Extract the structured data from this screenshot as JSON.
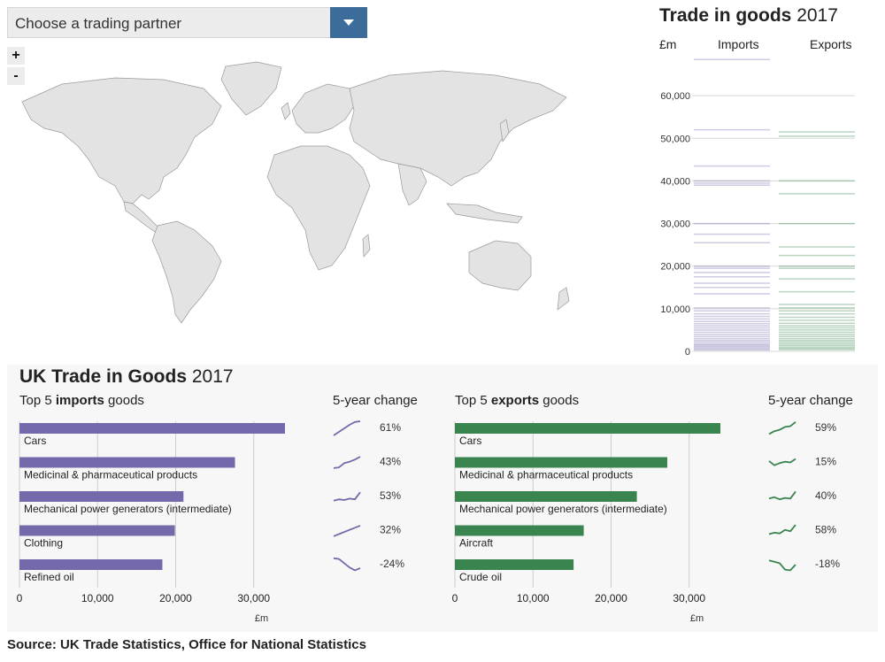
{
  "selector": {
    "label": "Choose a trading partner"
  },
  "map_controls": {
    "zoom_in": "+",
    "zoom_out": "-"
  },
  "trade_panel": {
    "title_bold": "Trade in goods",
    "title_year": "2017",
    "unit_label": "£m",
    "imports_label": "Imports",
    "exports_label": "Exports"
  },
  "summary": {
    "title_bold": "UK Trade in Goods",
    "title_year": "2017",
    "imports_heading": {
      "pre": "Top 5 ",
      "bold": "imports",
      "post": " goods"
    },
    "exports_heading": {
      "pre": "Top 5 ",
      "bold": "exports",
      "post": " goods"
    },
    "change_heading": "5-year change"
  },
  "source": "Source: UK Trade Statistics, Office for National Statistics",
  "colors": {
    "imports": "#7469ab",
    "exports": "#3a8450",
    "selector_button": "#3c6c9a",
    "map_fill": "#e3e3e3",
    "panel_bg": "#f7f7f7"
  },
  "icons": {
    "dropdown": "chevron-down-icon",
    "zoom_in": "plus-icon",
    "zoom_out": "minus-icon"
  },
  "chart_data": [
    {
      "type": "strip",
      "title": "Trade in goods 2017",
      "ylabel": "£m",
      "yticks": [
        "0",
        "10,000",
        "20,000",
        "30,000",
        "40,000",
        "50,000",
        "60,000"
      ],
      "ylim": [
        0,
        70000
      ],
      "series": [
        {
          "name": "Imports",
          "values": [
            68500,
            52000,
            43500,
            40000,
            39500,
            39000,
            30000,
            27500,
            25500,
            20000,
            19500,
            18500,
            17500,
            16000,
            15000,
            13500,
            10200,
            9500,
            8800,
            8200,
            7600,
            7000,
            6500,
            6000,
            5500,
            5000,
            4500,
            4000,
            3500,
            3000,
            2600,
            2200,
            1800,
            1500,
            1200,
            900,
            600,
            300
          ]
        },
        {
          "name": "Exports",
          "values": [
            51500,
            50500,
            40000,
            37000,
            30000,
            24500,
            22500,
            20000,
            19500,
            17000,
            14000,
            11000,
            10200,
            9500,
            8800,
            8000,
            7300,
            6600,
            6000,
            5500,
            5000,
            4500,
            4000,
            3500,
            3000,
            2600,
            2200,
            1800,
            1400,
            1000,
            700,
            400
          ]
        }
      ]
    },
    {
      "type": "bar",
      "orientation": "horizontal",
      "title": "Top 5 imports goods",
      "xlabel": "£m",
      "xticks": [
        "0",
        "10,000",
        "20,000",
        "30,000"
      ],
      "xlim": [
        0,
        34000
      ],
      "categories": [
        "Cars",
        "Medicinal & pharmaceutical products",
        "Mechanical power generators (intermediate)",
        "Clothing",
        "Refined oil"
      ],
      "values": [
        34000,
        27600,
        21000,
        19900,
        18300
      ],
      "change_labels": [
        "61%",
        "43%",
        "53%",
        "32%",
        "-24%"
      ],
      "sparklines": [
        [
          0,
          0.25,
          0.5,
          0.75,
          0.95,
          1.0
        ],
        [
          0.1,
          0.15,
          0.45,
          0.55,
          0.7,
          0.9
        ],
        [
          0.2,
          0.3,
          0.25,
          0.35,
          0.3,
          0.8
        ],
        [
          0.1,
          0.25,
          0.4,
          0.55,
          0.7,
          0.85
        ],
        [
          0.95,
          0.9,
          0.6,
          0.3,
          0.1,
          0.25
        ]
      ]
    },
    {
      "type": "bar",
      "orientation": "horizontal",
      "title": "Top 5 exports goods",
      "xlabel": "£m",
      "xticks": [
        "0",
        "10,000",
        "20,000",
        "30,000"
      ],
      "xlim": [
        0,
        34000
      ],
      "categories": [
        "Cars",
        "Medicinal & pharmaceutical products",
        "Mechanical power generators (intermediate)",
        "Aircraft",
        "Crude oil"
      ],
      "values": [
        34000,
        27200,
        23300,
        16500,
        15200
      ],
      "change_labels": [
        "59%",
        "15%",
        "40%",
        "58%",
        "-18%"
      ],
      "sparklines": [
        [
          0.1,
          0.3,
          0.4,
          0.6,
          0.65,
          0.95
        ],
        [
          0.6,
          0.3,
          0.45,
          0.55,
          0.5,
          0.75
        ],
        [
          0.35,
          0.45,
          0.3,
          0.4,
          0.35,
          0.85
        ],
        [
          0.25,
          0.35,
          0.3,
          0.55,
          0.45,
          0.9
        ],
        [
          0.8,
          0.7,
          0.6,
          0.15,
          0.1,
          0.5
        ]
      ]
    }
  ]
}
